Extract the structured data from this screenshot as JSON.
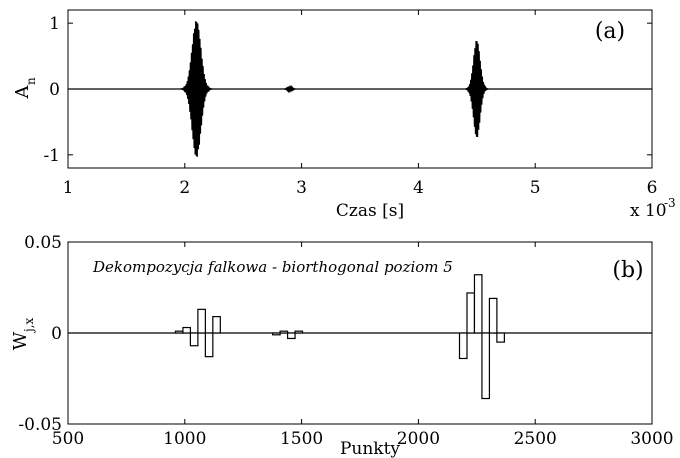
{
  "chart_data": [
    {
      "type": "line",
      "panel_tag": "(a)",
      "title": "",
      "xlabel": "Czas [s]",
      "ylabel": "A",
      "ylabel_sub": "n",
      "x_multiplier": "x 10",
      "x_multiplier_exp": "-3",
      "xlim": [
        1,
        6
      ],
      "ylim": [
        -1.2,
        1.2
      ],
      "xticks": [
        "1",
        "2",
        "3",
        "4",
        "5",
        "6"
      ],
      "yticks": [
        "-1",
        "0",
        "1"
      ],
      "grid": false,
      "series": [
        {
          "values_desc": "",
          "bursts": [
            {
              "center": 2.1,
              "width": 0.08,
              "amplitude": 1.05,
              "freq": 110
            },
            {
              "center": 2.9,
              "width": 0.04,
              "amplitude": 0.04,
              "freq": 110
            },
            {
              "center": 4.5,
              "width": 0.06,
              "amplitude": 0.75,
              "freq": 110
            }
          ]
        }
      ]
    },
    {
      "type": "bar",
      "panel_tag": "(b)",
      "title": "Dekompozycja falkowa - biorthogonal poziom 5",
      "xlabel": "Punkty",
      "ylabel": "W",
      "ylabel_sub": "j,x",
      "xlim": [
        500,
        3000
      ],
      "ylim": [
        -0.05,
        0.05
      ],
      "xticks": [
        "500",
        "1000",
        "1500",
        "2000",
        "2500",
        "3000"
      ],
      "yticks": [
        "-0.05",
        "0",
        "0.05"
      ],
      "grid": false,
      "bar_width": 32,
      "x": [
        960,
        992,
        1024,
        1056,
        1088,
        1120,
        1376,
        1408,
        1440,
        1472,
        2176,
        2208,
        2240,
        2272,
        2304,
        2336
      ],
      "values": [
        0.001,
        0.003,
        -0.007,
        0.013,
        -0.013,
        0.009,
        -0.001,
        0.001,
        -0.003,
        0.001,
        -0.014,
        0.022,
        0.032,
        -0.036,
        0.019,
        -0.005
      ]
    }
  ]
}
